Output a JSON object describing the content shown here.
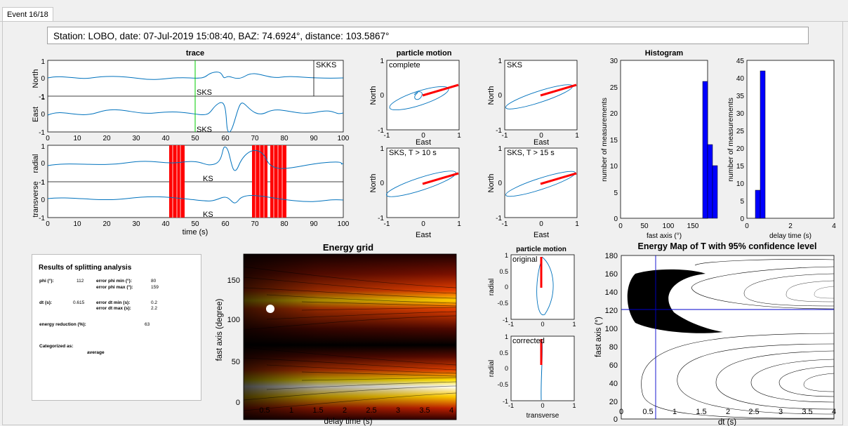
{
  "tab": {
    "label": "Event 16/18"
  },
  "station_info": "Station: LOBO, date: 07-Jul-2019 15:08:40, BAZ: 74.6924°, distance: 103.5867°",
  "trace": {
    "title": "trace",
    "ylabels": [
      "North",
      "East",
      "radial",
      "transverse"
    ],
    "xlabel": "time (s)",
    "xticks": [
      "0",
      "10",
      "20",
      "30",
      "40",
      "50",
      "60",
      "70",
      "80",
      "90",
      "100"
    ],
    "yticks": [
      "1",
      "0",
      "-1"
    ],
    "phase_labels": [
      "SKKS",
      "SKS",
      "SKS",
      "KS",
      "KS"
    ]
  },
  "particle_motion": {
    "title": "particle motion",
    "panels": [
      "complete",
      "SKS",
      "SKS, T > 10 s",
      "SKS, T > 15 s"
    ],
    "xlabel": "East",
    "ylabel": "North",
    "xticks": [
      "-1",
      "0",
      "1"
    ],
    "yticks": [
      "1",
      "0",
      "-1"
    ]
  },
  "histogram": {
    "title": "Histogram",
    "ylabel": "number of measurements",
    "left": {
      "xlabel": "fast axis (°)",
      "xticks": [
        "0",
        "50",
        "100",
        "150"
      ],
      "yticks": [
        "30",
        "25",
        "20",
        "15",
        "10",
        "5",
        "0"
      ]
    },
    "right": {
      "xlabel": "delay time (s)",
      "xticks": [
        "0",
        "2",
        "4"
      ],
      "yticks": [
        "45",
        "40",
        "35",
        "30",
        "25",
        "20",
        "15",
        "10",
        "5",
        "0"
      ]
    }
  },
  "results": {
    "title": "Results of splitting analysis",
    "phi_label": "phi (°):",
    "phi_value": "112",
    "err_phi_min_label": "error phi min (°):",
    "err_phi_min_value": "80",
    "err_phi_max_label": "error phi max (°):",
    "err_phi_max_value": "159",
    "dt_label": "dt (s):",
    "dt_value": "0.615",
    "err_dt_min_label": "error dt min (s):",
    "err_dt_min_value": "0.2",
    "err_dt_max_label": "error dt max (s):",
    "err_dt_max_value": "2.2",
    "energy_label": "energy reduction (%):",
    "energy_value": "63",
    "cat_label": "Categorized as:",
    "cat_value": "average"
  },
  "energy_grid": {
    "title": "Energy grid",
    "xlabel": "delay time (s)",
    "ylabel": "fast axis (degree)",
    "xticks": [
      "0.5",
      "1",
      "1.5",
      "2",
      "2.5",
      "3",
      "3.5",
      "4"
    ],
    "yticks": [
      "150",
      "100",
      "50",
      "0"
    ]
  },
  "pm_small": {
    "title": "particle motion",
    "top_label": "original",
    "bottom_label": "corrected",
    "ylabel": "radial",
    "xlabel": "transverse",
    "xticks": [
      "-1",
      "0",
      "1"
    ],
    "yticks": [
      "1",
      "0.5",
      "0",
      "-0.5",
      "-1"
    ]
  },
  "energy_map": {
    "title": "Energy Map of T with 95% confidence level",
    "xlabel": "dt (s)",
    "ylabel": "fast axis (°)",
    "xticks": [
      "0",
      "0.5",
      "1",
      "1.5",
      "2",
      "2.5",
      "3",
      "3.5",
      "4"
    ],
    "yticks": [
      "180",
      "160",
      "140",
      "120",
      "100",
      "80",
      "60",
      "40",
      "20",
      "0"
    ]
  },
  "colors": {
    "trace": "#0072bd",
    "red": "#ff0000",
    "bar": "#0000ff",
    "green": "#00cc00"
  }
}
